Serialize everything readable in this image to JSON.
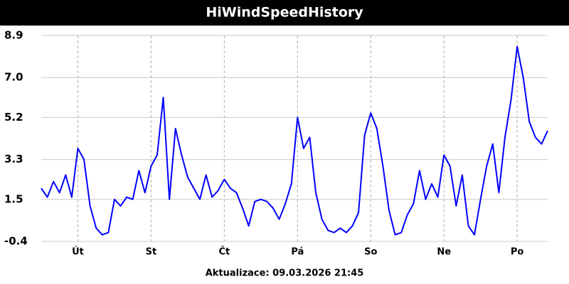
{
  "chart_data": {
    "type": "line",
    "title": "HiWindSpeedHistory",
    "footer": "Aktualizace: 09.03.2026 21:45",
    "x": [
      0,
      2,
      4,
      6,
      8,
      10,
      12,
      14,
      16,
      18,
      20,
      22,
      24,
      26,
      28,
      30,
      32,
      34,
      36,
      38,
      40,
      42,
      44,
      46,
      48,
      50,
      52,
      54,
      56,
      58,
      60,
      62,
      64,
      66,
      68,
      70,
      72,
      74,
      76,
      78,
      80,
      82,
      84,
      86,
      88,
      90,
      92,
      94,
      96,
      98,
      100,
      102,
      104,
      106,
      108,
      110,
      112,
      114,
      116,
      118,
      120,
      122,
      124,
      126,
      128,
      130,
      132,
      134,
      136,
      138,
      140,
      142,
      144,
      146,
      148,
      150,
      152,
      154,
      156,
      158,
      160,
      162,
      164,
      166
    ],
    "series": [
      {
        "color": "#0000ff",
        "values": [
          2.0,
          1.6,
          2.3,
          1.8,
          2.6,
          1.6,
          3.8,
          3.3,
          1.2,
          0.2,
          -0.1,
          0.0,
          1.5,
          1.2,
          1.6,
          1.5,
          2.8,
          1.8,
          3.0,
          3.5,
          6.1,
          1.5,
          4.7,
          3.5,
          2.5,
          2.0,
          1.5,
          2.6,
          1.6,
          1.9,
          2.4,
          2.0,
          1.8,
          1.1,
          0.3,
          1.4,
          1.5,
          1.4,
          1.1,
          0.6,
          1.3,
          2.2,
          5.2,
          3.8,
          4.3,
          1.8,
          0.6,
          0.1,
          0.0,
          0.2,
          0.0,
          0.3,
          0.9,
          4.4,
          5.4,
          4.7,
          3.0,
          1.0,
          -0.1,
          0.0,
          0.8,
          1.3,
          2.8,
          1.5,
          2.2,
          1.6,
          3.5,
          3.0,
          1.2,
          2.6,
          0.3,
          -0.1,
          1.5,
          3.0,
          4.0,
          1.8,
          4.3,
          6.0,
          8.4,
          7.0,
          5.0,
          4.3,
          4.0,
          4.6
        ]
      }
    ],
    "xlim": [
      0,
      166
    ],
    "xticks": [
      {
        "value": 12,
        "label": "Út"
      },
      {
        "value": 36,
        "label": "St"
      },
      {
        "value": 60,
        "label": "Čt"
      },
      {
        "value": 84,
        "label": "Pá"
      },
      {
        "value": 108,
        "label": "So"
      },
      {
        "value": 132,
        "label": "Ne"
      },
      {
        "value": 156,
        "label": "Po"
      }
    ],
    "ylim": [
      -0.4,
      8.9
    ],
    "yticks": [
      -0.4,
      1.5,
      3.3,
      5.2,
      {
        "value": 7,
        "label": "7.0"
      },
      8.9
    ],
    "grid": true
  }
}
